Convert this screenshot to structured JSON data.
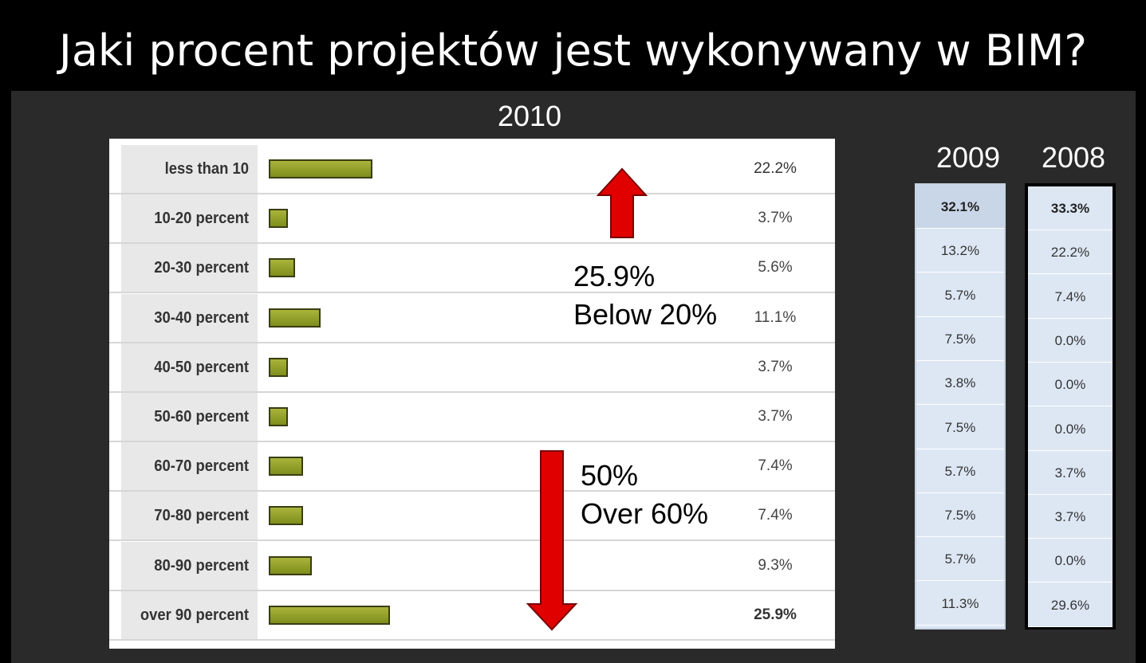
{
  "title": "Jaki procent projektów jest wykonywany w BIM?",
  "colors": {
    "bar": "#9aa52e",
    "arrow": "#e00000",
    "panel": "#2a2a2a"
  },
  "chart_data": [
    {
      "type": "bar",
      "orientation": "horizontal",
      "title": "2010",
      "categories": [
        "less than 10",
        "10-20 percent",
        "20-30 percent",
        "30-40 percent",
        "40-50 percent",
        "50-60 percent",
        "60-70 percent",
        "70-80 percent",
        "80-90 percent",
        "over 90 percent"
      ],
      "values": [
        22.2,
        3.7,
        5.6,
        11.1,
        3.7,
        3.7,
        7.4,
        7.4,
        9.3,
        25.9
      ],
      "value_labels": [
        "22.2%",
        "3.7%",
        "5.6%",
        "11.1%",
        "3.7%",
        "3.7%",
        "7.4%",
        "7.4%",
        "9.3%",
        "25.9%"
      ],
      "annotations": [
        {
          "line1": "25.9%",
          "line2": "Below 20%",
          "arrow": "up"
        },
        {
          "line1": "50%",
          "line2": "Over 60%",
          "arrow": "down"
        }
      ]
    },
    {
      "type": "table",
      "title": "2009",
      "values": [
        32.1,
        13.2,
        5.7,
        7.5,
        3.8,
        7.5,
        5.7,
        7.5,
        5.7,
        11.3
      ],
      "value_labels": [
        "32.1%",
        "13.2%",
        "5.7%",
        "7.5%",
        "3.8%",
        "7.5%",
        "5.7%",
        "7.5%",
        "5.7%",
        "11.3%"
      ]
    },
    {
      "type": "table",
      "title": "2008",
      "values": [
        33.3,
        22.2,
        7.4,
        0.0,
        0.0,
        0.0,
        3.7,
        3.7,
        0.0,
        29.6
      ],
      "value_labels": [
        "33.3%",
        "22.2%",
        "7.4%",
        "0.0%",
        "0.0%",
        "0.0%",
        "3.7%",
        "3.7%",
        "0.0%",
        "29.6%"
      ]
    }
  ]
}
